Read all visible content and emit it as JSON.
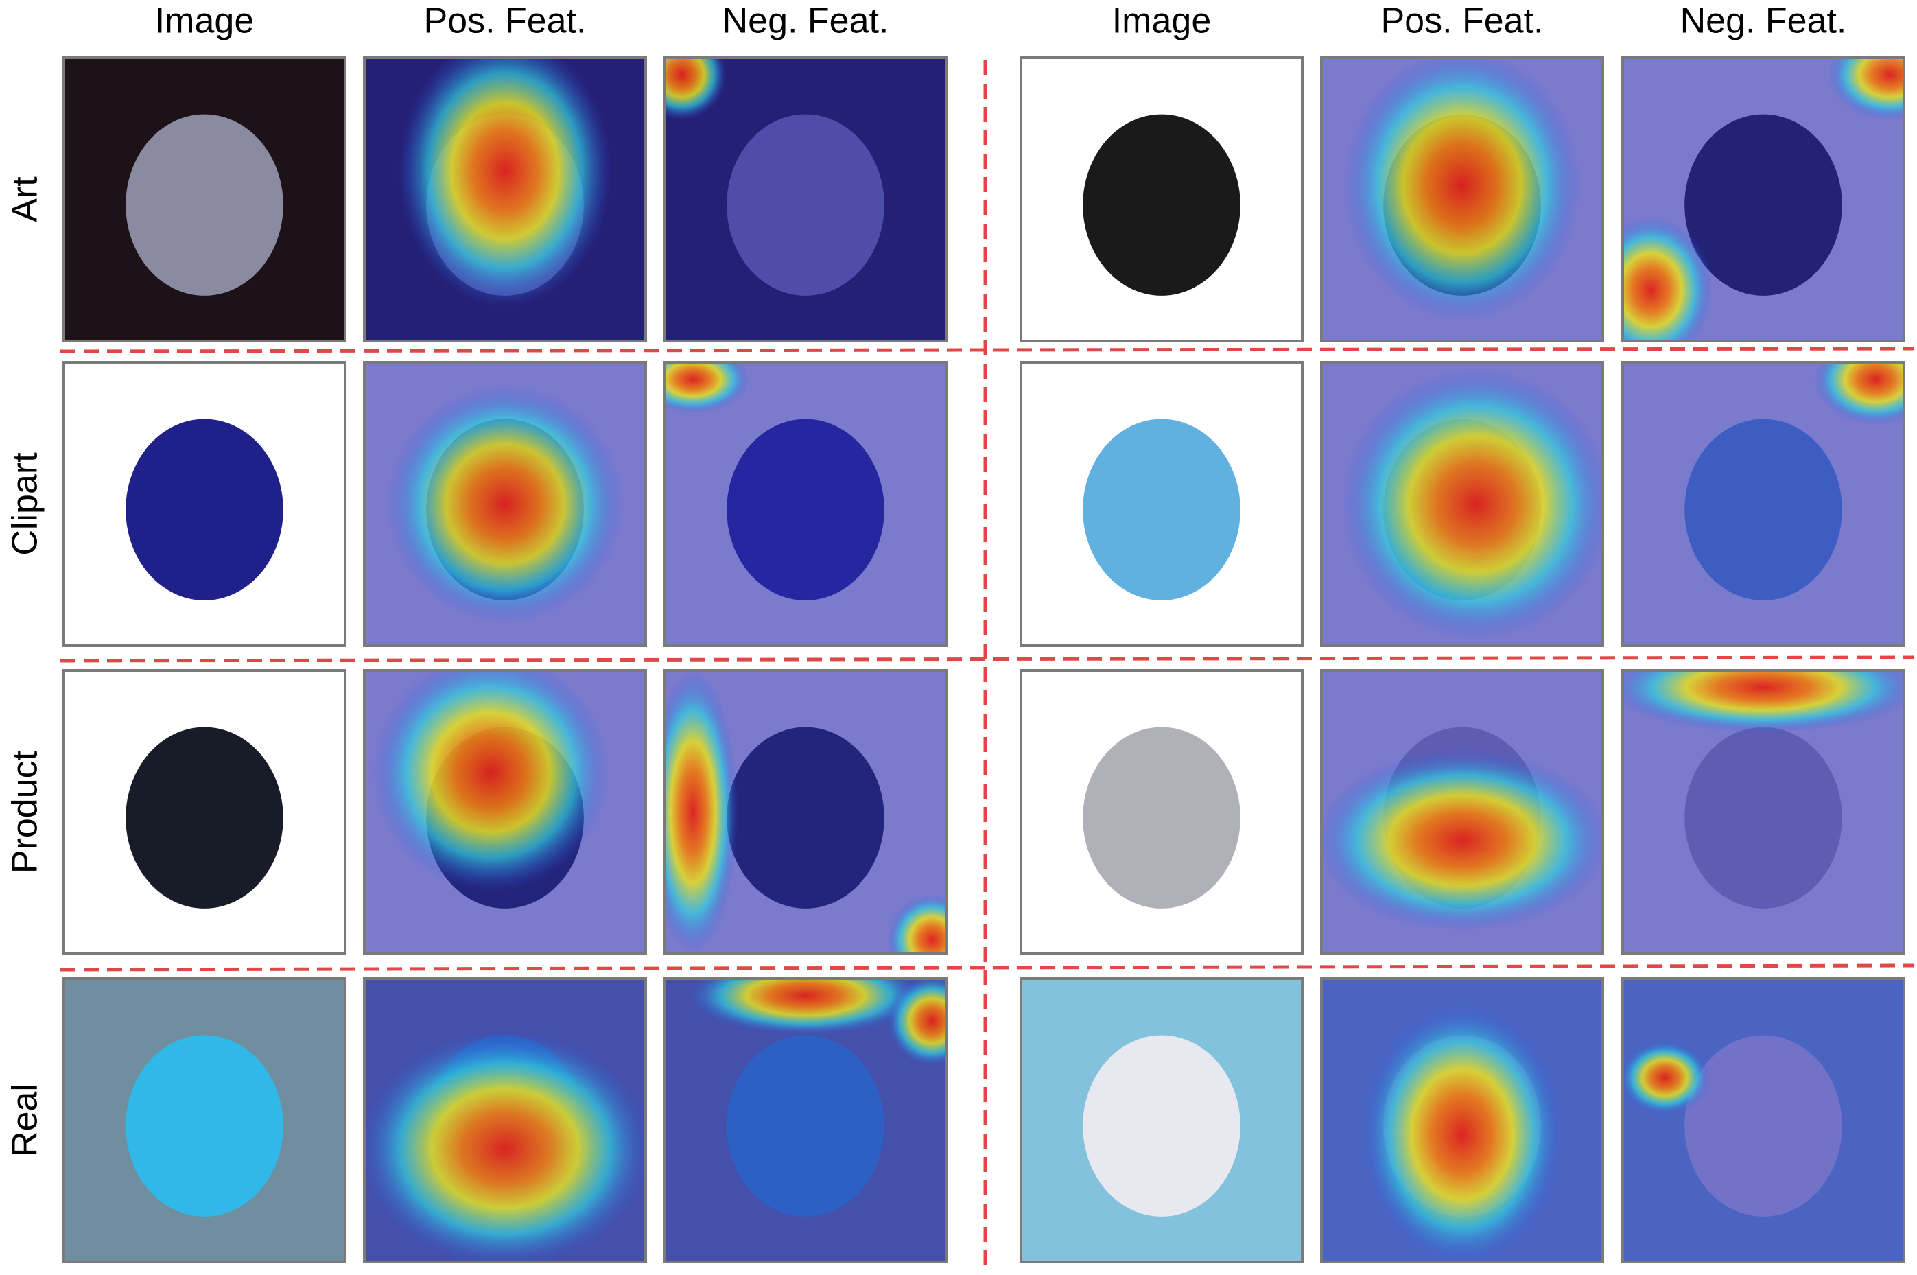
{
  "columns": [
    "Image",
    "Pos. Feat.",
    "Neg. Feat.",
    "Image",
    "Pos. Feat.",
    "Neg. Feat."
  ],
  "rows": [
    "Art",
    "Clipart",
    "Product",
    "Real"
  ]
}
